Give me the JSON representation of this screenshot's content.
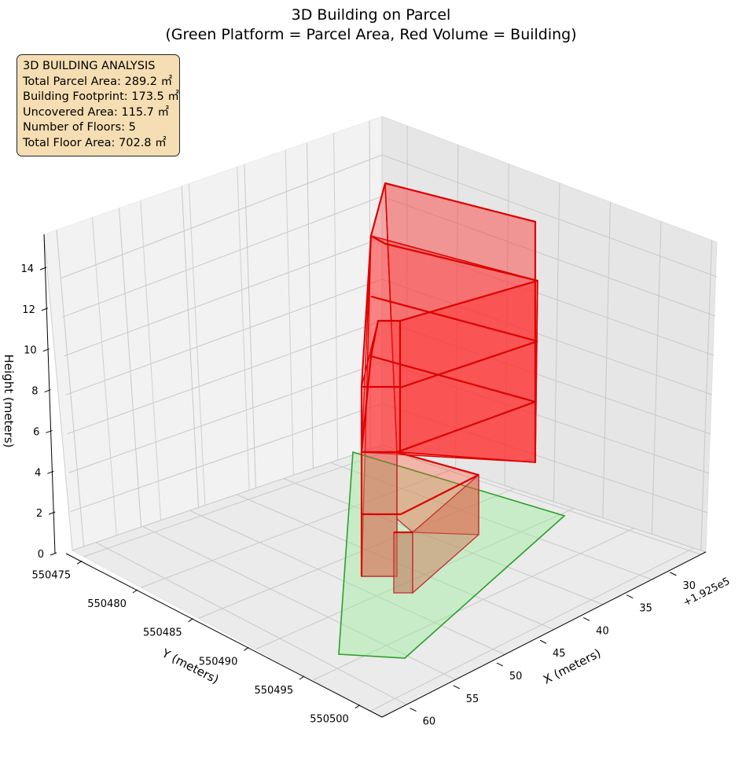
{
  "chart_data": {
    "type": "3d-polygons",
    "title": "3D Building on Parcel",
    "subtitle": "(Green Platform = Parcel Area, Red Volume = Building)",
    "xlabel": "X (meters)",
    "ylabel": "Y (meters)",
    "zlabel": "Height (meters)",
    "x_offset_label": "+1.925e5",
    "x_ticks": [
      "30",
      "35",
      "40",
      "45",
      "50",
      "55",
      "60"
    ],
    "y_ticks": [
      "550475",
      "550480",
      "550485",
      "550490",
      "550495",
      "550500"
    ],
    "z_ticks": [
      "0",
      "2",
      "4",
      "6",
      "8",
      "10",
      "12",
      "14"
    ],
    "grid": true,
    "colors": {
      "parcel": "#2ca02c",
      "parcel_fill": "#90ee90",
      "building": "#e00000",
      "building_fill": "#ff3030"
    },
    "parcel": {
      "name": "Parcel Area"
    },
    "building": {
      "name": "Building",
      "floors": 5
    }
  },
  "info_box": {
    "heading": "3D BUILDING ANALYSIS",
    "lines": [
      "Total Parcel Area: 289.2 ㎡",
      "Building Footprint: 173.5 ㎡",
      "Uncovered Area: 115.7 ㎡",
      "Number of Floors: 5",
      "Total Floor Area: 702.8 ㎡"
    ]
  }
}
